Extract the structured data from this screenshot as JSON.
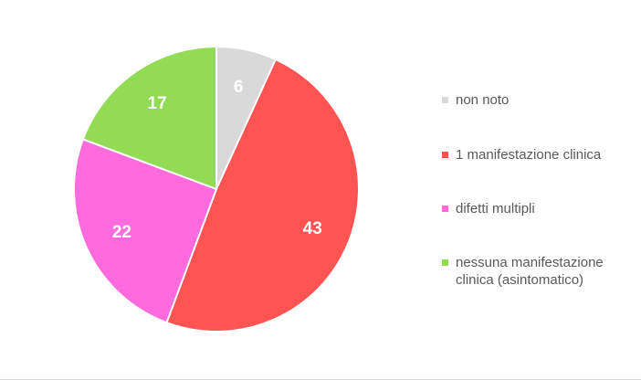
{
  "chart_data": {
    "type": "pie",
    "title": "",
    "categories": [
      "non noto",
      "1 manifestazione clinica",
      "difetti multipli",
      "nessuna manifestazione clinica (asintomatico)"
    ],
    "values": [
      6,
      43,
      22,
      17
    ],
    "colors": [
      "#d9d9d9",
      "#ff5451",
      "#ff6bdc",
      "#92dc55"
    ],
    "start_angle_deg": 0,
    "direction": "clockwise",
    "legend_position": "right",
    "data_labels": [
      "6",
      "43",
      "22",
      "17"
    ]
  }
}
